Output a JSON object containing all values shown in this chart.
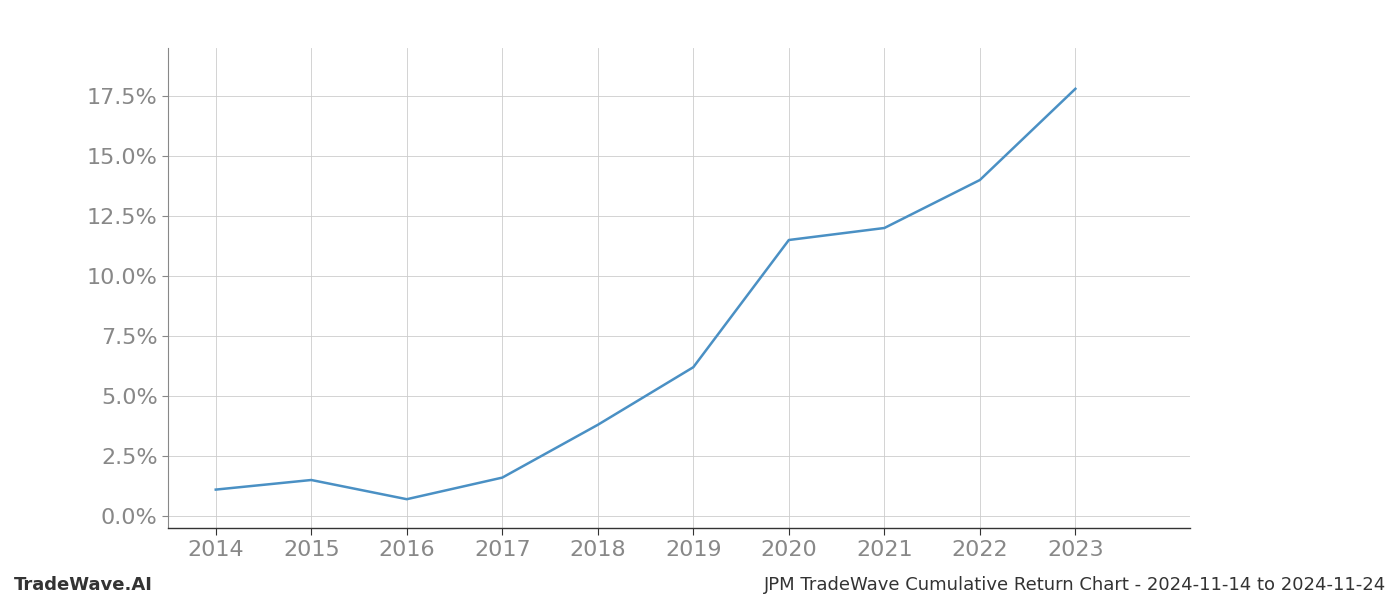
{
  "x_years": [
    2014,
    2015,
    2016,
    2017,
    2018,
    2019,
    2020,
    2021,
    2022,
    2023
  ],
  "y_values": [
    0.011,
    0.015,
    0.007,
    0.016,
    0.038,
    0.062,
    0.115,
    0.12,
    0.14,
    0.178
  ],
  "line_color": "#4a90c4",
  "line_width": 1.8,
  "background_color": "#ffffff",
  "grid_color": "#cccccc",
  "title": "JPM TradeWave Cumulative Return Chart - 2024-11-14 to 2024-11-24",
  "watermark_left": "TradeWave.AI",
  "ytick_values": [
    0.0,
    0.025,
    0.05,
    0.075,
    0.1,
    0.125,
    0.15,
    0.175
  ],
  "ylim_min": -0.005,
  "ylim_max": 0.195,
  "xlim_min": 2013.5,
  "xlim_max": 2024.2,
  "tick_color": "#888888",
  "footer_font_size": 13,
  "axis_font_size": 16
}
